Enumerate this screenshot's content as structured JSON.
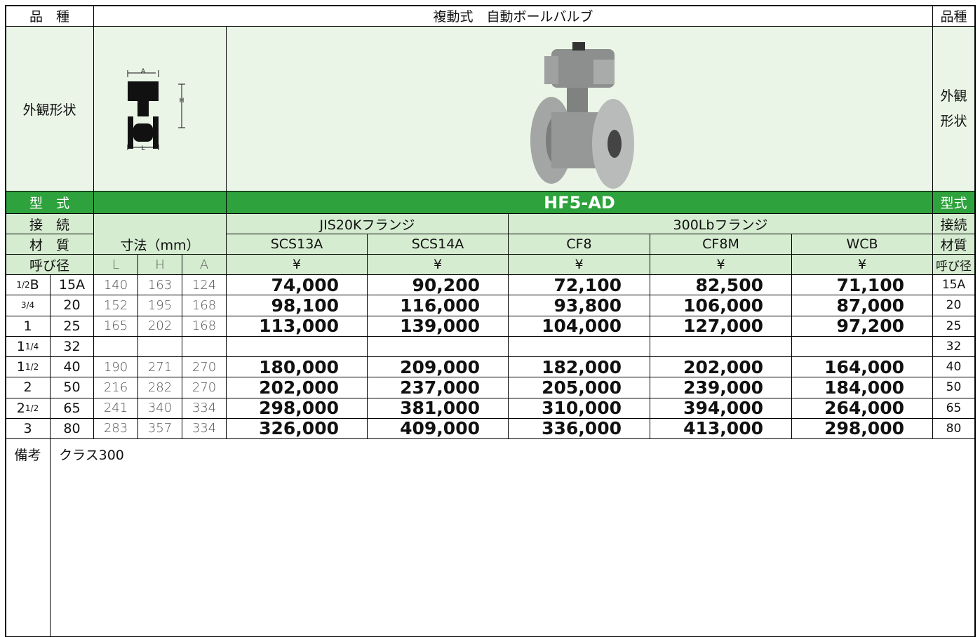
{
  "header": {
    "left_label": "品　種",
    "title": "複動式　自動ボールバルブ",
    "right_label": "品種"
  },
  "appearance": {
    "left_label": "外観形状",
    "right_label": [
      "外観",
      "形状"
    ],
    "diagram_labels": [
      "A",
      "H",
      "L"
    ]
  },
  "model": {
    "label": "型　式",
    "value": "HF5-AD",
    "right_label": "型式"
  },
  "connection": {
    "label": "接　続",
    "groups": [
      "JIS20Kフランジ",
      "300Lbフランジ"
    ],
    "right_label": "接続"
  },
  "material": {
    "label": "材　質",
    "dimension_header": "寸法（mm）",
    "materials": [
      "SCS13A",
      "SCS14A",
      "CF8",
      "CF8M",
      "WCB"
    ],
    "right_label": "材質"
  },
  "size_header": {
    "label": "呼び径",
    "dims": [
      "L",
      "H",
      "A"
    ],
    "currency": [
      "¥",
      "¥",
      "¥",
      "¥",
      "¥"
    ],
    "right_label": "呼び径"
  },
  "rows": [
    {
      "inch": {
        "fraction": "1/2",
        "suffix": "B"
      },
      "size": "15A",
      "dims": [
        140,
        163,
        124
      ],
      "prices": [
        "74,000",
        "90,200",
        "72,100",
        "82,500",
        "71,100"
      ]
    },
    {
      "inch": {
        "fraction": "3/4"
      },
      "size": "20",
      "dims": [
        152,
        195,
        168
      ],
      "prices": [
        "98,100",
        "116,000",
        "93,800",
        "106,000",
        "87,000"
      ]
    },
    {
      "inch": {
        "whole": "1"
      },
      "size": "25",
      "dims": [
        165,
        202,
        168
      ],
      "prices": [
        "113,000",
        "139,000",
        "104,000",
        "127,000",
        "97,200"
      ]
    },
    {
      "inch": {
        "whole": "1",
        "fraction": "1/4"
      },
      "size": "32"
    },
    {
      "inch": {
        "whole": "1",
        "fraction": "1/2"
      },
      "size": "40",
      "dims": [
        190,
        271,
        270
      ],
      "prices": [
        "180,000",
        "209,000",
        "182,000",
        "202,000",
        "164,000"
      ]
    },
    {
      "inch": {
        "whole": "2"
      },
      "size": "50",
      "dims": [
        216,
        282,
        270
      ],
      "prices": [
        "202,000",
        "237,000",
        "205,000",
        "239,000",
        "184,000"
      ]
    },
    {
      "inch": {
        "whole": "2",
        "fraction": "1/2"
      },
      "size": "65",
      "dims": [
        241,
        340,
        334
      ],
      "prices": [
        "298,000",
        "381,000",
        "310,000",
        "394,000",
        "264,000"
      ]
    },
    {
      "inch": {
        "whole": "3"
      },
      "size": "80",
      "dims": [
        283,
        357,
        334
      ],
      "prices": [
        "326,000",
        "409,000",
        "336,000",
        "413,000",
        "298,000"
      ]
    }
  ],
  "remarks": {
    "label": "備考",
    "text": "クラス300"
  }
}
